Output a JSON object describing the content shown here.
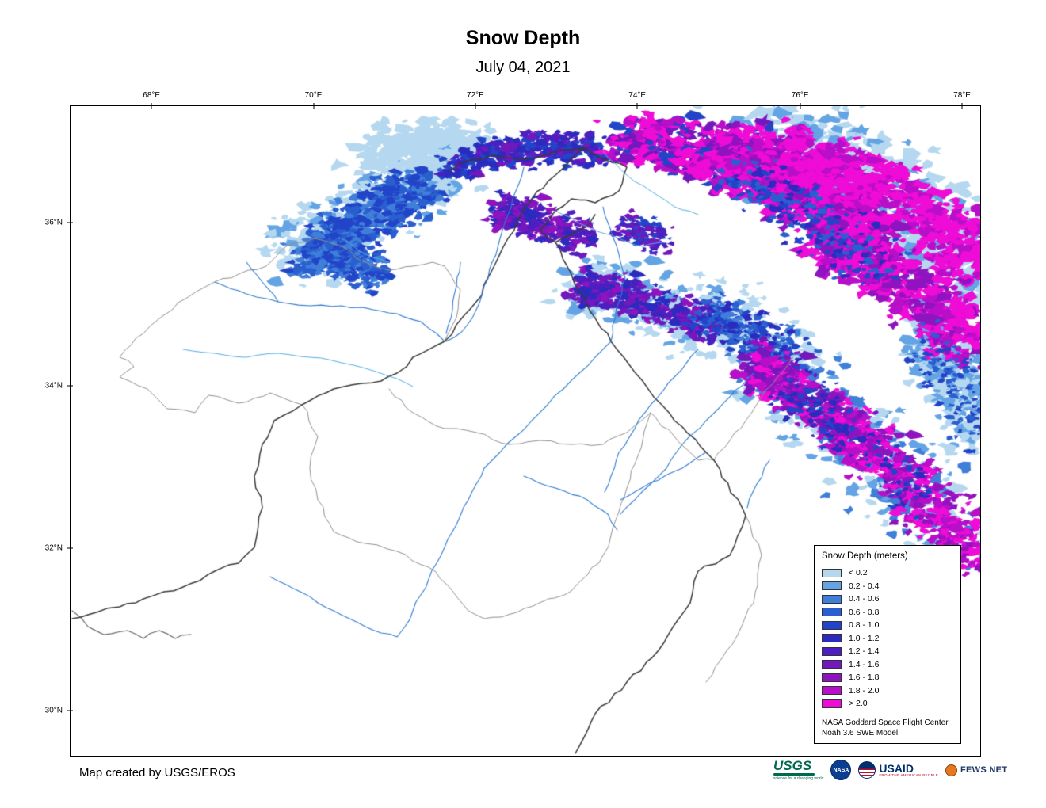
{
  "title": "Snow Depth",
  "date": "July 04, 2021",
  "map": {
    "x_ticks": [
      "68°E",
      "70°E",
      "72°E",
      "74°E",
      "76°E",
      "78°E"
    ],
    "y_ticks": [
      "36°N",
      "34°N",
      "32°N",
      "30°N"
    ],
    "colors": {
      "river": "#2f7bd0",
      "river_light": "#54aee3",
      "basin_boundary": "#909090",
      "border": "#3a3a3a",
      "background": "#ffffff"
    }
  },
  "legend": {
    "title": "Snow Depth (meters)",
    "entries": [
      {
        "label": "< 0.2",
        "color": "#b5d8f0"
      },
      {
        "label": "0.2 - 0.4",
        "color": "#64a4e4"
      },
      {
        "label": "0.4 - 0.6",
        "color": "#3f7fd9"
      },
      {
        "label": "0.6 - 0.8",
        "color": "#2a5fd0"
      },
      {
        "label": "0.8 - 1.0",
        "color": "#2244c8"
      },
      {
        "label": "1.0 - 1.2",
        "color": "#2b2bbf"
      },
      {
        "label": "1.2 - 1.4",
        "color": "#4d1fc0"
      },
      {
        "label": "1.4 - 1.6",
        "color": "#7318bd"
      },
      {
        "label": "1.6 - 1.8",
        "color": "#9013c0"
      },
      {
        "label": "1.8 - 2.0",
        "color": "#b80fc9"
      },
      {
        "label": "> 2.0",
        "color": "#ee0cd6"
      }
    ],
    "note_line1": "NASA Goddard Space Flight Center",
    "note_line2": "Noah 3.6 SWE Model."
  },
  "footer": {
    "attribution": "Map created by USGS/EROS",
    "logos": {
      "usgs": {
        "label": "USGS",
        "tagline": "science for a changing world"
      },
      "nasa": {
        "label": "NASA"
      },
      "usaid": {
        "label": "USAID",
        "tagline": "FROM THE AMERICAN PEOPLE"
      },
      "fewsnet": {
        "label": "FEWS NET"
      }
    }
  }
}
